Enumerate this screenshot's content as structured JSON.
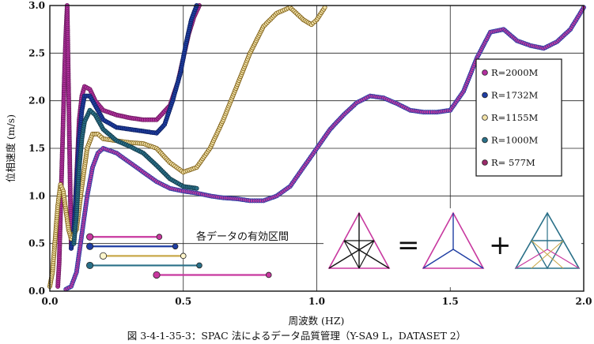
{
  "chart_data": {
    "type": "scatter",
    "title": "",
    "xlabel": "周波数 (HZ)",
    "ylabel": "位相速度 (m/s)",
    "xlim": [
      0.0,
      2.0
    ],
    "ylim": [
      0.0,
      3.0
    ],
    "xticks": [
      0.0,
      0.5,
      1.0,
      1.5,
      2.0
    ],
    "xtick_labels": [
      "0.0",
      "0.5",
      "1.0",
      "1.5",
      "2.0"
    ],
    "yticks": [
      0.0,
      0.5,
      1.0,
      1.5,
      2.0,
      2.5,
      3.0
    ],
    "ytick_labels": [
      "0.0",
      "0.5",
      "1.0",
      "1.5",
      "2.0",
      "2.5",
      "3.0"
    ],
    "grid": true,
    "legend_position": "right",
    "caption": "図 3-4-1-35-3：SPAC 法によるデータ品質管理（Y-SA9 L，DATASET 2）",
    "annotation": "各データの有効区間",
    "equation_symbols": [
      "=",
      "+"
    ],
    "series": [
      {
        "name": "R=2000M",
        "color": "#b3309f",
        "points": [
          [
            0.03,
            0.05
          ],
          [
            0.035,
            0.3
          ],
          [
            0.04,
            0.8
          ],
          [
            0.045,
            1.3
          ],
          [
            0.05,
            1.8
          ],
          [
            0.055,
            2.3
          ],
          [
            0.06,
            2.7
          ],
          [
            0.065,
            3.0
          ],
          [
            0.08,
            0.45
          ],
          [
            0.09,
            0.6
          ],
          [
            0.1,
            1.2
          ],
          [
            0.11,
            1.8
          ],
          [
            0.12,
            2.05
          ],
          [
            0.13,
            2.15
          ],
          [
            0.15,
            2.12
          ],
          [
            0.17,
            2.0
          ],
          [
            0.2,
            1.9
          ],
          [
            0.25,
            1.85
          ],
          [
            0.3,
            1.82
          ],
          [
            0.35,
            1.8
          ],
          [
            0.4,
            1.8
          ],
          [
            0.45,
            1.95
          ],
          [
            0.48,
            2.2
          ],
          [
            0.5,
            2.45
          ],
          [
            0.52,
            2.7
          ],
          [
            0.54,
            2.88
          ],
          [
            0.56,
            3.0
          ]
        ]
      },
      {
        "name": "R=1732M",
        "color": "#1f3ea3",
        "points": [
          [
            0.08,
            0.45
          ],
          [
            0.09,
            0.65
          ],
          [
            0.1,
            1.1
          ],
          [
            0.11,
            1.6
          ],
          [
            0.12,
            1.9
          ],
          [
            0.13,
            2.05
          ],
          [
            0.15,
            2.05
          ],
          [
            0.17,
            1.95
          ],
          [
            0.2,
            1.8
          ],
          [
            0.25,
            1.72
          ],
          [
            0.3,
            1.7
          ],
          [
            0.35,
            1.68
          ],
          [
            0.4,
            1.66
          ],
          [
            0.43,
            1.75
          ],
          [
            0.46,
            2.0
          ],
          [
            0.49,
            2.3
          ],
          [
            0.51,
            2.6
          ],
          [
            0.53,
            2.85
          ],
          [
            0.55,
            3.0
          ]
        ]
      },
      {
        "name": "R=1155M",
        "color": "#c8a84a",
        "points": [
          [
            0.0,
            0.05
          ],
          [
            0.01,
            0.2
          ],
          [
            0.02,
            0.55
          ],
          [
            0.03,
            0.9
          ],
          [
            0.04,
            1.12
          ],
          [
            0.05,
            1.05
          ],
          [
            0.06,
            0.85
          ],
          [
            0.07,
            0.65
          ],
          [
            0.08,
            0.55
          ],
          [
            0.1,
            0.65
          ],
          [
            0.12,
            1.1
          ],
          [
            0.14,
            1.5
          ],
          [
            0.16,
            1.65
          ],
          [
            0.18,
            1.65
          ],
          [
            0.2,
            1.6
          ],
          [
            0.25,
            1.58
          ],
          [
            0.3,
            1.56
          ],
          [
            0.35,
            1.55
          ],
          [
            0.4,
            1.5
          ],
          [
            0.45,
            1.35
          ],
          [
            0.5,
            1.25
          ],
          [
            0.55,
            1.3
          ],
          [
            0.6,
            1.5
          ],
          [
            0.65,
            1.8
          ],
          [
            0.7,
            2.15
          ],
          [
            0.75,
            2.5
          ],
          [
            0.8,
            2.78
          ],
          [
            0.85,
            2.92
          ],
          [
            0.9,
            2.98
          ],
          [
            0.95,
            2.85
          ],
          [
            0.98,
            2.8
          ],
          [
            1.0,
            2.85
          ],
          [
            1.03,
            2.98
          ]
        ]
      },
      {
        "name": "R=1000M",
        "color": "#2a7088",
        "points": [
          [
            0.09,
            0.5
          ],
          [
            0.1,
            0.8
          ],
          [
            0.11,
            1.3
          ],
          [
            0.12,
            1.6
          ],
          [
            0.13,
            1.78
          ],
          [
            0.15,
            1.9
          ],
          [
            0.17,
            1.85
          ],
          [
            0.2,
            1.7
          ],
          [
            0.25,
            1.58
          ],
          [
            0.3,
            1.52
          ],
          [
            0.35,
            1.45
          ],
          [
            0.4,
            1.32
          ],
          [
            0.45,
            1.18
          ],
          [
            0.5,
            1.1
          ],
          [
            0.55,
            1.08
          ]
        ]
      },
      {
        "name": "R=  577M",
        "color": "#9a2a6a",
        "points": [
          [
            0.06,
            0.02
          ],
          [
            0.08,
            0.05
          ],
          [
            0.1,
            0.2
          ],
          [
            0.12,
            0.6
          ],
          [
            0.14,
            1.0
          ],
          [
            0.16,
            1.3
          ],
          [
            0.18,
            1.45
          ],
          [
            0.2,
            1.5
          ],
          [
            0.25,
            1.45
          ],
          [
            0.3,
            1.35
          ],
          [
            0.35,
            1.25
          ],
          [
            0.4,
            1.15
          ],
          [
            0.45,
            1.08
          ],
          [
            0.5,
            1.05
          ],
          [
            0.55,
            1.03
          ],
          [
            0.6,
            1.0
          ],
          [
            0.65,
            0.98
          ],
          [
            0.7,
            0.97
          ],
          [
            0.75,
            0.95
          ],
          [
            0.8,
            0.95
          ],
          [
            0.85,
            1.0
          ],
          [
            0.9,
            1.1
          ],
          [
            0.95,
            1.3
          ],
          [
            1.0,
            1.5
          ],
          [
            1.05,
            1.7
          ],
          [
            1.1,
            1.85
          ],
          [
            1.15,
            1.98
          ],
          [
            1.2,
            2.05
          ],
          [
            1.25,
            2.03
          ],
          [
            1.3,
            1.97
          ],
          [
            1.35,
            1.9
          ],
          [
            1.4,
            1.88
          ],
          [
            1.45,
            1.88
          ],
          [
            1.5,
            1.9
          ],
          [
            1.55,
            2.1
          ],
          [
            1.6,
            2.45
          ],
          [
            1.65,
            2.72
          ],
          [
            1.7,
            2.75
          ],
          [
            1.75,
            2.63
          ],
          [
            1.8,
            2.58
          ],
          [
            1.85,
            2.55
          ],
          [
            1.9,
            2.62
          ],
          [
            1.95,
            2.75
          ],
          [
            2.0,
            2.98
          ]
        ]
      }
    ],
    "valid_ranges": [
      {
        "series": "R=2000M",
        "color": "#c8389f",
        "x_start": 0.15,
        "x_end": 0.41,
        "y": 0.57
      },
      {
        "series": "R=1732M",
        "color": "#1f3ea3",
        "x_start": 0.15,
        "x_end": 0.47,
        "y": 0.47
      },
      {
        "series": "R=1155M",
        "color": "#c8a84a",
        "x_start": 0.2,
        "x_end": 0.5,
        "y": 0.37
      },
      {
        "series": "R=1000M",
        "color": "#2a7088",
        "x_start": 0.15,
        "x_end": 0.56,
        "y": 0.27
      },
      {
        "series": "R=  577M",
        "color": "#c8389f",
        "x_start": 0.4,
        "x_end": 0.82,
        "y": 0.17
      }
    ]
  }
}
